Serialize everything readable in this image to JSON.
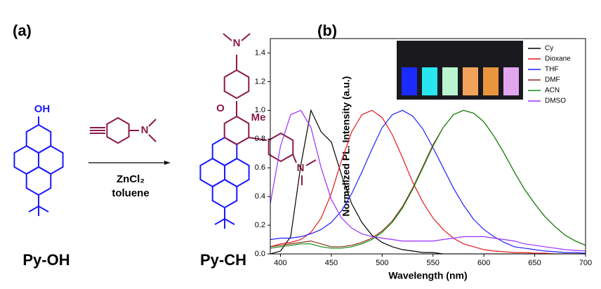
{
  "scheme": {
    "label": "(a)",
    "reactant": {
      "name": "Py-OH",
      "atoms": [
        "OH"
      ]
    },
    "reagent": {
      "atoms": [
        "N"
      ]
    },
    "conditions": [
      "ZnCl₂",
      "toluene"
    ],
    "product": {
      "name": "Py-CH",
      "atoms": [
        "O",
        "Me",
        "N",
        "N"
      ]
    }
  },
  "chart_data": {
    "type": "line",
    "panel_label": "(b)",
    "x_label": "Wavelength (nm)",
    "y_label": "Normalized PL. Intensity (a.u.)",
    "x": [
      390,
      400,
      410,
      420,
      430,
      440,
      450,
      460,
      470,
      480,
      490,
      500,
      510,
      520,
      530,
      540,
      550,
      560,
      570,
      580,
      590,
      600,
      610,
      620,
      630,
      640,
      650,
      660,
      670,
      680,
      690,
      700
    ],
    "series": [
      {
        "name": "Cy",
        "color": "#000000",
        "values": [
          0,
          0.02,
          0.12,
          0.62,
          1.0,
          0.85,
          0.78,
          0.55,
          0.35,
          0.22,
          0.13,
          0.08,
          0.05,
          0.03,
          0.02,
          0.01,
          0.01,
          0,
          0,
          0,
          0,
          0,
          0,
          0,
          0,
          0,
          0,
          0,
          0,
          0,
          0,
          0
        ]
      },
      {
        "name": "Dioxane",
        "color": "#e31a1c",
        "values": [
          0.05,
          0.07,
          0.08,
          0.1,
          0.15,
          0.25,
          0.42,
          0.65,
          0.85,
          0.97,
          1.0,
          0.95,
          0.83,
          0.67,
          0.5,
          0.36,
          0.25,
          0.17,
          0.11,
          0.07,
          0.05,
          0.03,
          0.02,
          0.015,
          0.01,
          0.01,
          0.005,
          0.005,
          0,
          0,
          0,
          0
        ]
      },
      {
        "name": "THF",
        "color": "#1f1fff",
        "values": [
          0.1,
          0.11,
          0.11,
          0.12,
          0.14,
          0.17,
          0.22,
          0.3,
          0.42,
          0.57,
          0.73,
          0.88,
          0.97,
          1.0,
          0.96,
          0.87,
          0.74,
          0.6,
          0.46,
          0.34,
          0.24,
          0.17,
          0.12,
          0.08,
          0.05,
          0.04,
          0.03,
          0.02,
          0.015,
          0.01,
          0.01,
          0.005
        ]
      },
      {
        "name": "DMF",
        "color": "#8b2e16",
        "values": [
          0.05,
          0.06,
          0.07,
          0.08,
          0.09,
          0.07,
          0.05,
          0.05,
          0.06,
          0.08,
          0.11,
          0.16,
          0.23,
          0.33,
          0.46,
          0.61,
          0.76,
          0.88,
          0.97,
          1.0,
          0.98,
          0.92,
          0.82,
          0.7,
          0.57,
          0.45,
          0.35,
          0.26,
          0.19,
          0.13,
          0.09,
          0.06
        ]
      },
      {
        "name": "ACN",
        "color": "#138a13",
        "values": [
          0.04,
          0.05,
          0.06,
          0.07,
          0.07,
          0.05,
          0.04,
          0.04,
          0.05,
          0.07,
          0.1,
          0.15,
          0.22,
          0.32,
          0.45,
          0.6,
          0.75,
          0.88,
          0.97,
          1.0,
          0.98,
          0.92,
          0.82,
          0.7,
          0.57,
          0.45,
          0.35,
          0.26,
          0.19,
          0.13,
          0.09,
          0.06
        ]
      },
      {
        "name": "DMSO",
        "color": "#9b30ff",
        "values": [
          0.35,
          0.75,
          0.97,
          1.0,
          0.88,
          0.6,
          0.38,
          0.25,
          0.18,
          0.14,
          0.12,
          0.11,
          0.1,
          0.09,
          0.09,
          0.09,
          0.09,
          0.1,
          0.11,
          0.12,
          0.12,
          0.12,
          0.11,
          0.1,
          0.09,
          0.07,
          0.06,
          0.05,
          0.04,
          0.03,
          0.025,
          0.02
        ]
      }
    ],
    "xlim": [
      390,
      700
    ],
    "xticks": [
      400,
      450,
      500,
      550,
      600,
      650,
      700
    ],
    "ylim": [
      0,
      1.5
    ],
    "yticks": [
      {
        "value": 0,
        "label": "0.0"
      },
      0.2,
      0.4,
      0.6,
      0.8,
      {
        "value": 1,
        "label": "1.0"
      },
      1.2,
      1.4
    ],
    "legend": "upper right"
  }
}
